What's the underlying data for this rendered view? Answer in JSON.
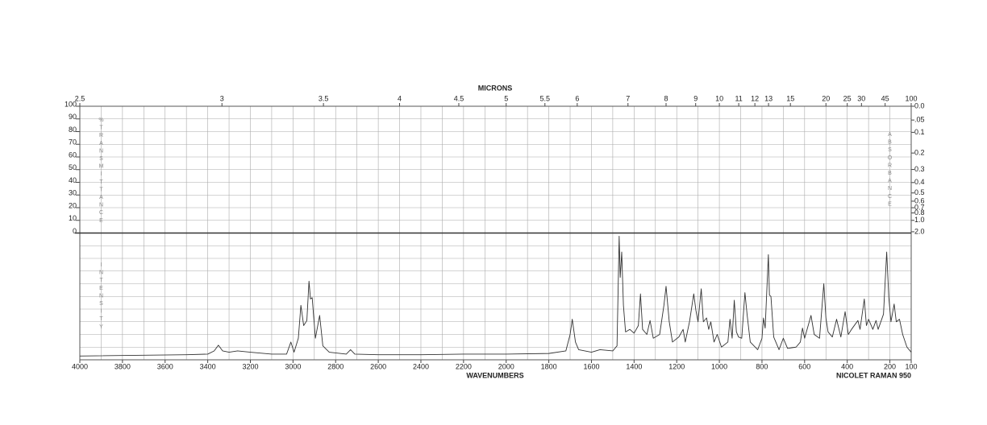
{
  "chart_data": {
    "type": "line",
    "xlabel": "WAVENUMBERS",
    "x2label": "MICRONS",
    "instrument": "NICOLET RAMAN 950",
    "ylabel": "%TRANSMITTANCE",
    "y2label": "ABSORBANCE",
    "intensity_label": "INTENSITY",
    "xlim": [
      4000,
      100
    ],
    "xticks": [
      4000,
      3800,
      3600,
      3400,
      3200,
      3000,
      2800,
      2600,
      2400,
      2200,
      2000,
      1800,
      1600,
      1400,
      1200,
      1000,
      800,
      600,
      400,
      200,
      100
    ],
    "x2ticks": [
      2.5,
      3,
      3.5,
      4,
      4.5,
      5,
      5.5,
      6,
      7,
      8,
      9,
      10,
      11,
      12,
      13,
      15,
      20,
      25,
      30,
      45,
      100
    ],
    "ylim": [
      0,
      100
    ],
    "yticks": [
      0,
      10,
      20,
      30,
      40,
      50,
      60,
      70,
      80,
      90,
      100
    ],
    "y2ticks": [
      {
        "value": 0,
        "label": "0.0"
      },
      {
        "value": 0.05,
        "label": ".05"
      },
      0.1,
      0.2,
      0.3,
      0.4,
      0.5,
      0.6,
      0.7,
      0.8,
      {
        "value": 1,
        "label": "1.0"
      },
      {
        "value": 2,
        "label": "2.0"
      }
    ],
    "intensity_lim": [
      0,
      100
    ],
    "grid": true,
    "color": "#333333",
    "x": [
      4000,
      3500,
      3400,
      3370,
      3350,
      3330,
      3300,
      3260,
      3200,
      3100,
      3030,
      3010,
      2995,
      2975,
      2963,
      2950,
      2935,
      2925,
      2918,
      2910,
      2895,
      2875,
      2860,
      2830,
      2750,
      2730,
      2710,
      2600,
      2400,
      2200,
      2000,
      1800,
      1720,
      1700,
      1690,
      1675,
      1660,
      1600,
      1560,
      1500,
      1480,
      1470,
      1465,
      1458,
      1450,
      1440,
      1420,
      1400,
      1380,
      1370,
      1360,
      1340,
      1325,
      1310,
      1280,
      1260,
      1250,
      1235,
      1220,
      1190,
      1170,
      1160,
      1140,
      1120,
      1110,
      1100,
      1085,
      1075,
      1060,
      1050,
      1040,
      1025,
      1010,
      990,
      960,
      950,
      940,
      930,
      920,
      910,
      895,
      880,
      870,
      855,
      820,
      800,
      793,
      785,
      770,
      765,
      758,
      745,
      720,
      700,
      680,
      640,
      620,
      610,
      600,
      570,
      555,
      530,
      510,
      500,
      490,
      470,
      450,
      430,
      410,
      395,
      380,
      350,
      340,
      320,
      310,
      300,
      280,
      265,
      255,
      230,
      215,
      205,
      195,
      180,
      170,
      155,
      140,
      120,
      100
    ],
    "values": [
      3,
      4,
      4.5,
      7,
      11.5,
      7,
      6,
      7,
      6,
      4.5,
      4.5,
      14,
      6,
      17,
      43,
      27,
      31,
      62,
      48,
      49,
      17,
      35,
      11,
      6,
      4.5,
      8,
      4.5,
      4,
      4,
      4.5,
      4.5,
      5,
      7,
      20,
      32,
      14,
      8,
      6,
      8,
      7,
      11,
      97.5,
      65,
      85,
      43,
      22,
      24,
      21,
      27,
      52,
      24,
      20,
      31,
      17,
      20,
      43,
      58,
      30,
      14,
      18,
      24,
      14,
      30,
      52,
      39,
      30,
      56,
      30,
      33,
      24,
      30,
      14,
      20,
      10,
      14,
      32,
      17,
      47,
      22,
      18,
      17,
      53,
      36,
      14,
      8,
      17,
      33,
      25,
      83,
      51,
      50,
      18,
      8,
      17,
      9,
      10,
      14,
      25,
      17,
      35,
      20,
      17,
      60,
      33,
      22,
      18,
      32,
      18,
      38,
      20,
      24,
      31,
      24,
      48,
      27,
      32,
      24,
      31,
      24,
      36,
      85,
      49,
      30,
      44,
      30,
      32,
      20,
      10,
      6
    ]
  }
}
